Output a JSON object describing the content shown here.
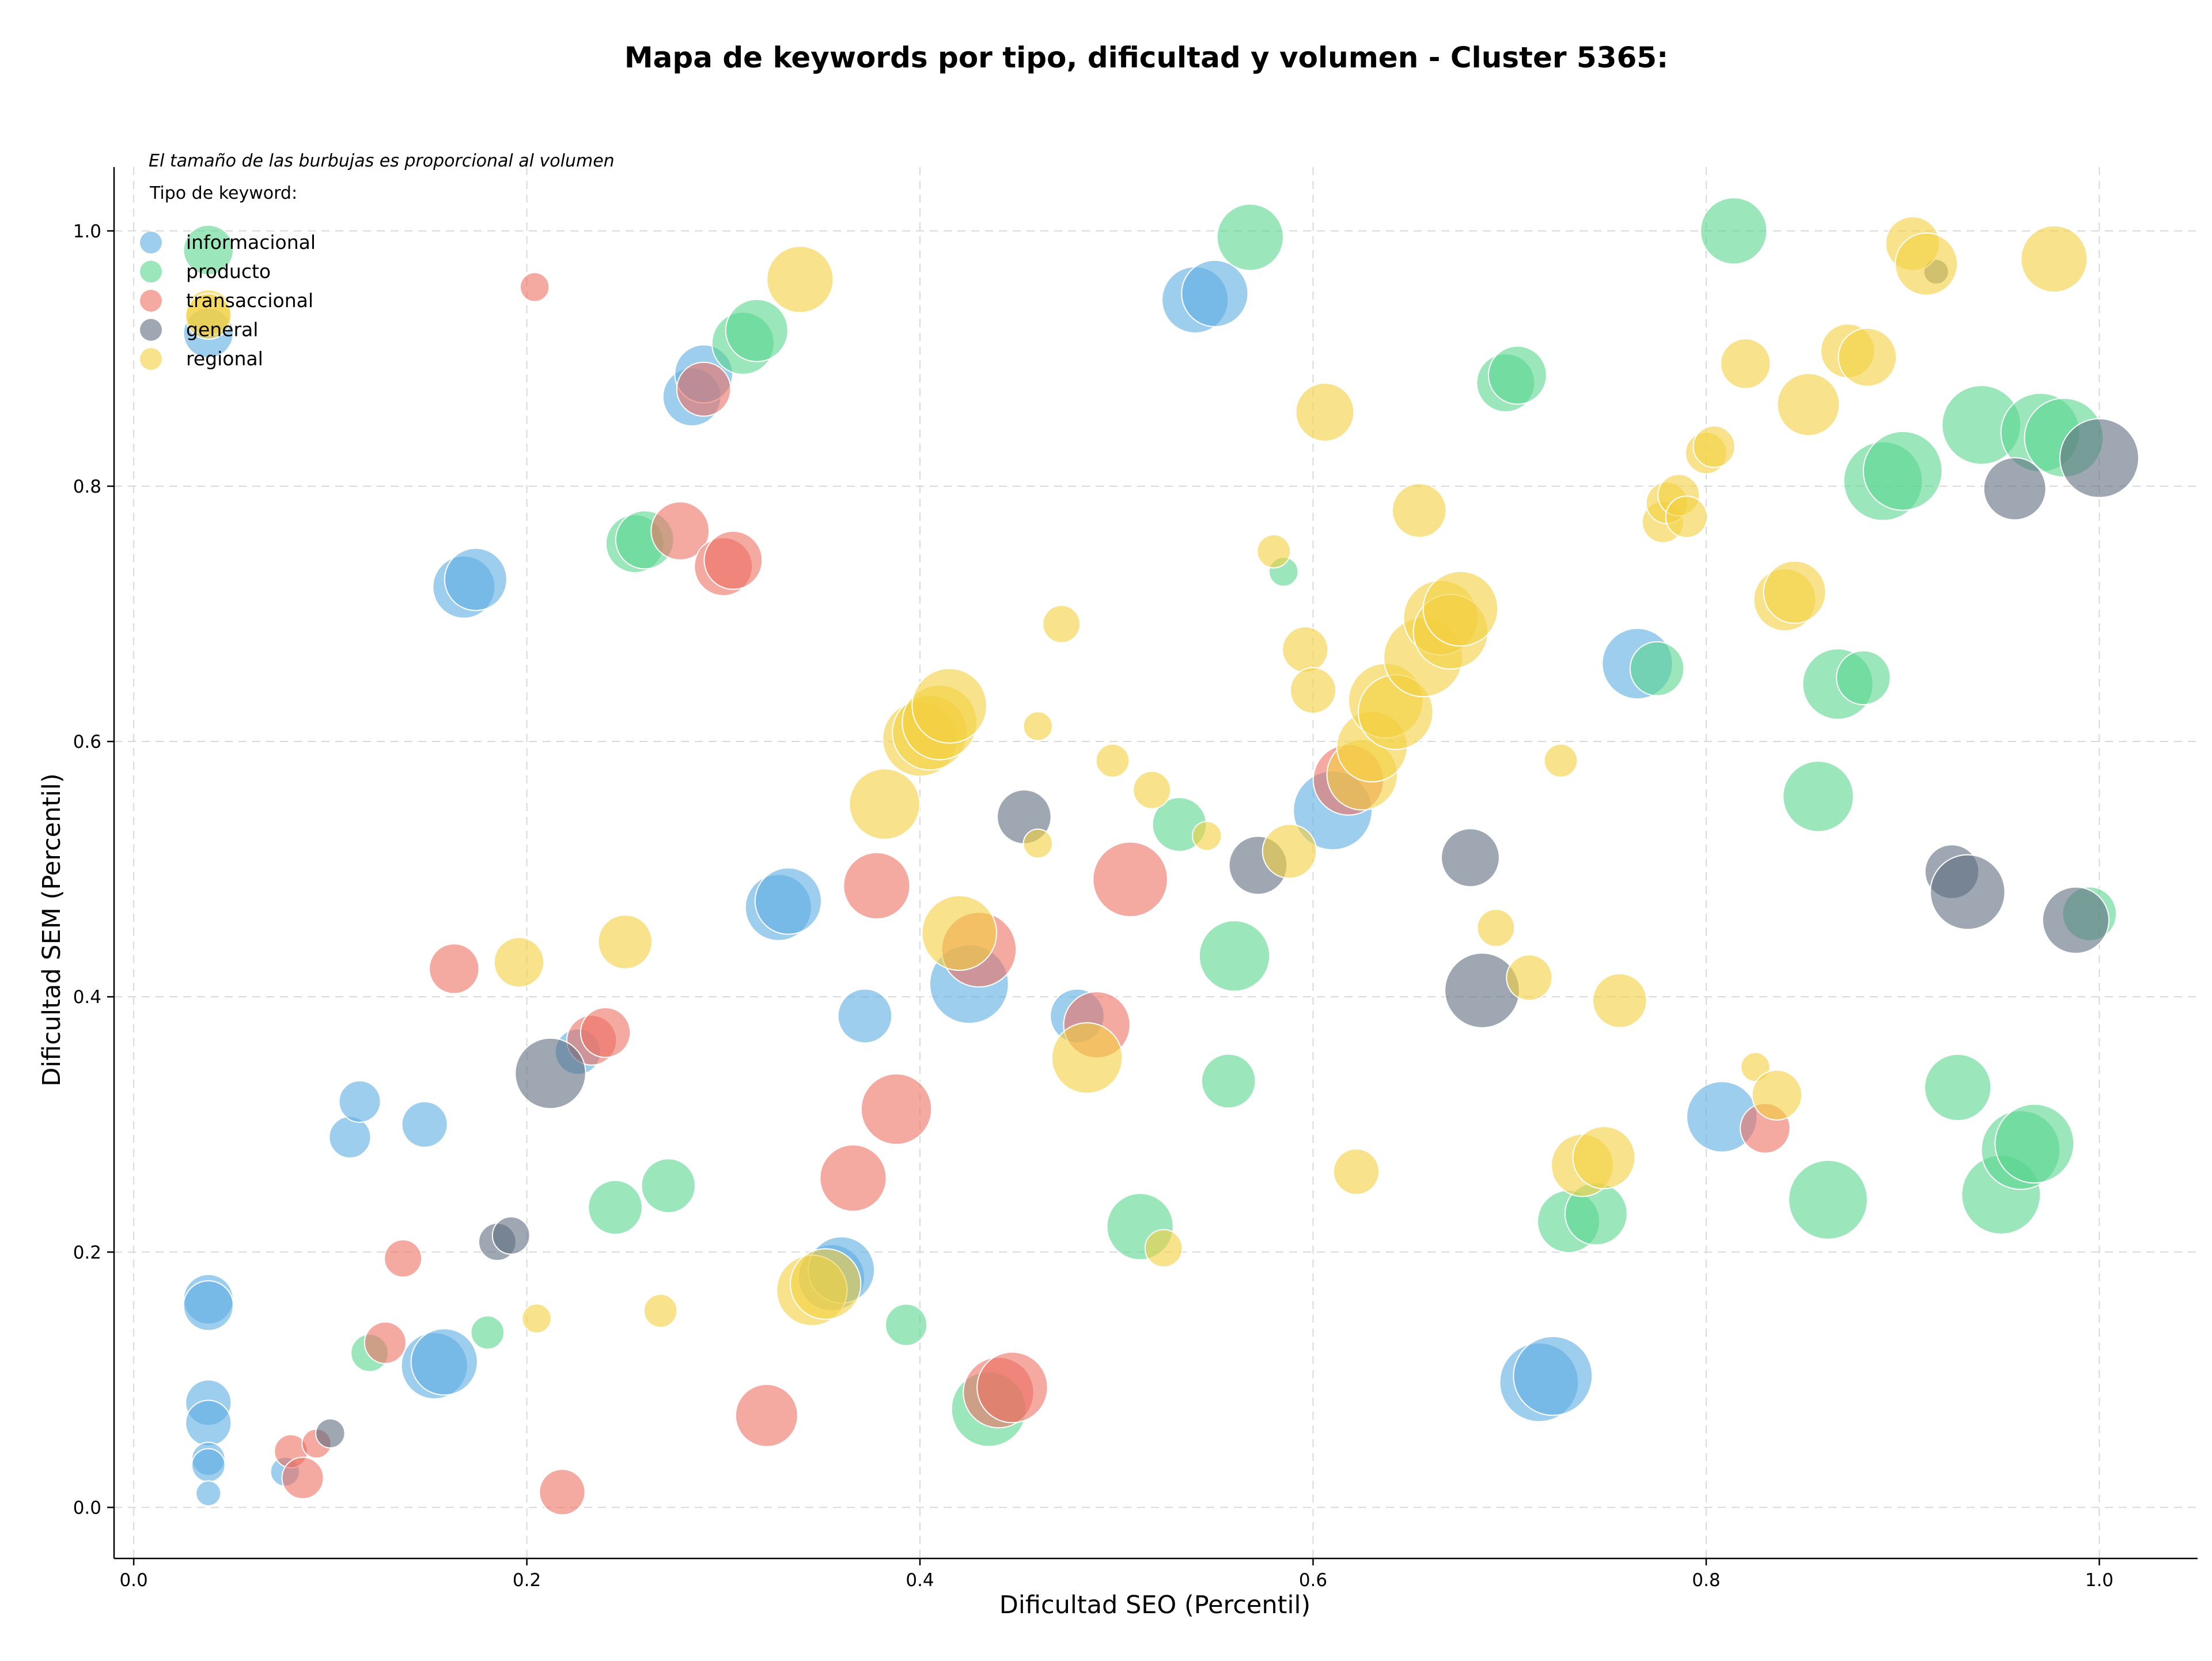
{
  "chart_data": {
    "type": "scatter",
    "title": "Mapa de keywords por tipo, dificultad y volumen - Cluster 5365:",
    "xlabel": "Dificultad SEO (Percentil)",
    "ylabel": "Dificultad SEM (Percentil)",
    "xlim": [
      -0.01,
      1.05
    ],
    "ylim": [
      -0.04,
      1.05
    ],
    "xticks": [
      "0.0",
      "0.2",
      "0.4",
      "0.6",
      "0.8",
      "1.0"
    ],
    "yticks": [
      "0.0",
      "0.2",
      "0.4",
      "0.6",
      "0.8",
      "1.0"
    ],
    "grid": true,
    "legend_position": "top-left",
    "note": "El tamaño de las burbujas es proporcional al volumen",
    "legend_title": "Tipo de keyword:",
    "series": [
      {
        "name": "informacional",
        "color": "#5dade2",
        "points": [
          [
            0.038,
            0.92,
            1.2
          ],
          [
            0.038,
            0.163,
            1.2
          ],
          [
            0.038,
            0.158,
            1.2
          ],
          [
            0.038,
            0.082,
            1.1
          ],
          [
            0.038,
            0.066,
            1.1
          ],
          [
            0.038,
            0.038,
            0.8
          ],
          [
            0.038,
            0.033,
            0.8
          ],
          [
            0.038,
            0.011,
            0.6
          ],
          [
            0.077,
            0.028,
            0.7
          ],
          [
            0.11,
            0.29,
            1.0
          ],
          [
            0.115,
            0.318,
            1.0
          ],
          [
            0.148,
            0.3,
            1.1
          ],
          [
            0.153,
            0.111,
            1.6
          ],
          [
            0.158,
            0.114,
            1.6
          ],
          [
            0.168,
            0.721,
            1.5
          ],
          [
            0.174,
            0.727,
            1.5
          ],
          [
            0.226,
            0.357,
            1.1
          ],
          [
            0.284,
            0.87,
            1.4
          ],
          [
            0.29,
            0.888,
            1.4
          ],
          [
            0.328,
            0.47,
            1.6
          ],
          [
            0.333,
            0.475,
            1.6
          ],
          [
            0.355,
            0.18,
            1.6
          ],
          [
            0.36,
            0.186,
            1.6
          ],
          [
            0.372,
            0.385,
            1.3
          ],
          [
            0.425,
            0.41,
            1.9
          ],
          [
            0.48,
            0.385,
            1.3
          ],
          [
            0.54,
            0.946,
            1.6
          ],
          [
            0.55,
            0.951,
            1.6
          ],
          [
            0.61,
            0.546,
            1.9
          ],
          [
            0.765,
            0.661,
            1.7
          ],
          [
            0.808,
            0.306,
            1.7
          ],
          [
            0.715,
            0.098,
            1.9
          ],
          [
            0.722,
            0.103,
            1.9
          ]
        ]
      },
      {
        "name": "producto",
        "color": "#58d68d",
        "points": [
          [
            0.038,
            0.985,
            1.2
          ],
          [
            0.12,
            0.121,
            0.9
          ],
          [
            0.18,
            0.137,
            0.8
          ],
          [
            0.245,
            0.235,
            1.3
          ],
          [
            0.255,
            0.755,
            1.4
          ],
          [
            0.26,
            0.758,
            1.4
          ],
          [
            0.272,
            0.252,
            1.3
          ],
          [
            0.31,
            0.912,
            1.5
          ],
          [
            0.317,
            0.922,
            1.5
          ],
          [
            0.393,
            0.143,
            1.0
          ],
          [
            0.435,
            0.077,
            1.8
          ],
          [
            0.512,
            0.22,
            1.6
          ],
          [
            0.532,
            0.535,
            1.3
          ],
          [
            0.557,
            0.334,
            1.3
          ],
          [
            0.56,
            0.432,
            1.7
          ],
          [
            0.568,
            0.995,
            1.6
          ],
          [
            0.585,
            0.733,
            0.7
          ],
          [
            0.698,
            0.881,
            1.4
          ],
          [
            0.704,
            0.887,
            1.4
          ],
          [
            0.73,
            0.224,
            1.5
          ],
          [
            0.744,
            0.23,
            1.5
          ],
          [
            0.775,
            0.657,
            1.3
          ],
          [
            0.814,
            1.0,
            1.6
          ],
          [
            0.857,
            0.557,
            1.7
          ],
          [
            0.862,
            0.241,
            1.9
          ],
          [
            0.867,
            0.645,
            1.7
          ],
          [
            0.88,
            0.65,
            1.3
          ],
          [
            0.89,
            0.804,
            1.9
          ],
          [
            0.9,
            0.812,
            1.9
          ],
          [
            0.928,
            0.329,
            1.6
          ],
          [
            0.94,
            0.848,
            1.9
          ],
          [
            0.95,
            0.245,
            1.9
          ],
          [
            0.96,
            0.28,
            1.9
          ],
          [
            0.967,
            0.285,
            1.9
          ],
          [
            0.97,
            0.842,
            1.9
          ],
          [
            0.982,
            0.838,
            1.9
          ],
          [
            0.995,
            0.465,
            1.3
          ]
        ]
      },
      {
        "name": "transaccional",
        "color": "#ec7063",
        "points": [
          [
            0.204,
            0.956,
            0.7
          ],
          [
            0.08,
            0.044,
            0.8
          ],
          [
            0.086,
            0.023,
            1.0
          ],
          [
            0.093,
            0.05,
            0.7
          ],
          [
            0.137,
            0.195,
            0.9
          ],
          [
            0.128,
            0.129,
            1.0
          ],
          [
            0.163,
            0.422,
            1.2
          ],
          [
            0.218,
            0.012,
            1.1
          ],
          [
            0.233,
            0.366,
            1.2
          ],
          [
            0.24,
            0.372,
            1.2
          ],
          [
            0.278,
            0.765,
            1.4
          ],
          [
            0.29,
            0.876,
            1.3
          ],
          [
            0.3,
            0.737,
            1.4
          ],
          [
            0.305,
            0.742,
            1.4
          ],
          [
            0.322,
            0.072,
            1.5
          ],
          [
            0.366,
            0.258,
            1.6
          ],
          [
            0.378,
            0.487,
            1.6
          ],
          [
            0.388,
            0.312,
            1.7
          ],
          [
            0.43,
            0.437,
            1.8
          ],
          [
            0.44,
            0.09,
            1.7
          ],
          [
            0.447,
            0.094,
            1.7
          ],
          [
            0.49,
            0.378,
            1.6
          ],
          [
            0.507,
            0.492,
            1.8
          ],
          [
            0.618,
            0.57,
            1.7
          ],
          [
            0.83,
            0.297,
            1.2
          ]
        ]
      },
      {
        "name": "general",
        "color": "#5d6d7e",
        "points": [
          [
            0.1,
            0.058,
            0.7
          ],
          [
            0.185,
            0.208,
            0.9
          ],
          [
            0.192,
            0.213,
            0.9
          ],
          [
            0.212,
            0.34,
            1.7
          ],
          [
            0.453,
            0.541,
            1.3
          ],
          [
            0.572,
            0.503,
            1.4
          ],
          [
            0.68,
            0.509,
            1.4
          ],
          [
            0.686,
            0.405,
            1.8
          ],
          [
            0.917,
            0.968,
            0.6
          ],
          [
            0.925,
            0.498,
            1.3
          ],
          [
            0.933,
            0.482,
            1.8
          ],
          [
            0.957,
            0.798,
            1.5
          ],
          [
            0.988,
            0.46,
            1.6
          ],
          [
            1.0,
            0.822,
            1.9
          ]
        ]
      },
      {
        "name": "regional",
        "color": "#f4d03f",
        "points": [
          [
            0.038,
            0.936,
            1.1
          ],
          [
            0.038,
            0.933,
            1.1
          ],
          [
            0.196,
            0.427,
            1.2
          ],
          [
            0.205,
            0.148,
            0.7
          ],
          [
            0.25,
            0.443,
            1.3
          ],
          [
            0.268,
            0.154,
            0.8
          ],
          [
            0.339,
            0.962,
            1.6
          ],
          [
            0.345,
            0.17,
            1.7
          ],
          [
            0.352,
            0.175,
            1.7
          ],
          [
            0.382,
            0.551,
            1.7
          ],
          [
            0.4,
            0.602,
            1.8
          ],
          [
            0.405,
            0.607,
            1.8
          ],
          [
            0.41,
            0.615,
            1.8
          ],
          [
            0.415,
            0.628,
            1.8
          ],
          [
            0.42,
            0.45,
            1.8
          ],
          [
            0.46,
            0.612,
            0.7
          ],
          [
            0.46,
            0.52,
            0.7
          ],
          [
            0.472,
            0.692,
            0.9
          ],
          [
            0.485,
            0.352,
            1.7
          ],
          [
            0.498,
            0.585,
            0.8
          ],
          [
            0.518,
            0.562,
            0.9
          ],
          [
            0.524,
            0.203,
            0.9
          ],
          [
            0.546,
            0.526,
            0.7
          ],
          [
            0.58,
            0.749,
            0.8
          ],
          [
            0.588,
            0.514,
            1.3
          ],
          [
            0.596,
            0.672,
            1.1
          ],
          [
            0.6,
            0.64,
            1.1
          ],
          [
            0.606,
            0.858,
            1.4
          ],
          [
            0.622,
            0.263,
            1.1
          ],
          [
            0.625,
            0.574,
            1.7
          ],
          [
            0.63,
            0.596,
            1.7
          ],
          [
            0.637,
            0.632,
            1.8
          ],
          [
            0.642,
            0.623,
            1.8
          ],
          [
            0.654,
            0.781,
            1.3
          ],
          [
            0.656,
            0.666,
            1.9
          ],
          [
            0.665,
            0.697,
            1.8
          ],
          [
            0.67,
            0.686,
            1.8
          ],
          [
            0.675,
            0.704,
            1.8
          ],
          [
            0.693,
            0.454,
            0.9
          ],
          [
            0.71,
            0.415,
            1.1
          ],
          [
            0.726,
            0.585,
            0.8
          ],
          [
            0.737,
            0.268,
            1.5
          ],
          [
            0.748,
            0.274,
            1.5
          ],
          [
            0.756,
            0.397,
            1.3
          ],
          [
            0.778,
            0.772,
            1.0
          ],
          [
            0.78,
            0.787,
            1.0
          ],
          [
            0.786,
            0.793,
            1.0
          ],
          [
            0.79,
            0.776,
            1.0
          ],
          [
            0.8,
            0.826,
            1.0
          ],
          [
            0.804,
            0.831,
            1.0
          ],
          [
            0.82,
            0.896,
            1.2
          ],
          [
            0.825,
            0.345,
            0.7
          ],
          [
            0.836,
            0.323,
            1.2
          ],
          [
            0.84,
            0.711,
            1.5
          ],
          [
            0.845,
            0.717,
            1.5
          ],
          [
            0.852,
            0.864,
            1.5
          ],
          [
            0.872,
            0.906,
            1.3
          ],
          [
            0.882,
            0.901,
            1.4
          ],
          [
            0.905,
            0.99,
            1.3
          ],
          [
            0.912,
            0.974,
            1.5
          ],
          [
            0.977,
            0.978,
            1.6
          ]
        ]
      }
    ]
  }
}
